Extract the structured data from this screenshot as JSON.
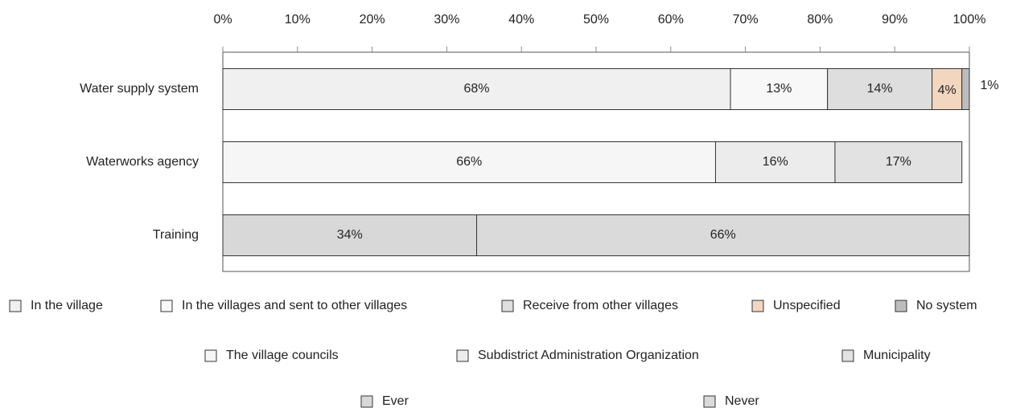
{
  "chart_data": {
    "type": "stacked-bar-horizontal",
    "categories": [
      "Water supply system",
      "Waterworks agency",
      "Training"
    ],
    "xlim": [
      0,
      100
    ],
    "xticks": [
      {
        "value": 0,
        "label": "0%"
      },
      {
        "value": 10,
        "label": "10%"
      },
      {
        "value": 20,
        "label": "20%"
      },
      {
        "value": 30,
        "label": "30%"
      },
      {
        "value": 40,
        "label": "40%"
      },
      {
        "value": 50,
        "label": "50%"
      },
      {
        "value": 60,
        "label": "60%"
      },
      {
        "value": 70,
        "label": "70%"
      },
      {
        "value": 80,
        "label": "80%"
      },
      {
        "value": 90,
        "label": "90%"
      },
      {
        "value": 100,
        "label": "100%"
      }
    ],
    "series": [
      {
        "name": "In the village",
        "color": "#f0f0f0",
        "values": [
          68,
          null,
          null
        ],
        "value_labels": [
          "68%",
          null,
          null
        ]
      },
      {
        "name": "In the villages and sent to other villages",
        "color": "#f8f8f8",
        "values": [
          13,
          null,
          null
        ],
        "value_labels": [
          "13%",
          null,
          null
        ]
      },
      {
        "name": "Receive from other villages",
        "color": "#dedede",
        "values": [
          14,
          null,
          null
        ],
        "value_labels": [
          "14%",
          null,
          null
        ]
      },
      {
        "name": "Unspecified",
        "color": "#f3d6c0",
        "values": [
          4,
          null,
          null
        ],
        "value_labels": [
          "4%",
          null,
          null
        ]
      },
      {
        "name": "No system",
        "color": "#bdbdbd",
        "values": [
          1,
          null,
          null
        ],
        "value_labels": [
          "1%",
          null,
          null
        ]
      },
      {
        "name": "The village councils",
        "color": "#f6f6f6",
        "values": [
          null,
          66,
          null
        ],
        "value_labels": [
          null,
          "66%",
          null
        ]
      },
      {
        "name": "Subdistrict Administration Organization",
        "color": "#ececec",
        "values": [
          null,
          16,
          null
        ],
        "value_labels": [
          null,
          "16%",
          null
        ]
      },
      {
        "name": "Municipality",
        "color": "#e2e2e2",
        "values": [
          null,
          17,
          null
        ],
        "value_labels": [
          null,
          "17%",
          null
        ]
      },
      {
        "name": "Ever",
        "color": "#d8d8d8",
        "values": [
          null,
          null,
          34
        ],
        "value_labels": [
          null,
          null,
          "34%"
        ]
      },
      {
        "name": "Never",
        "color": "#dadada",
        "values": [
          null,
          null,
          66
        ],
        "value_labels": [
          null,
          null,
          "66%"
        ]
      }
    ]
  }
}
